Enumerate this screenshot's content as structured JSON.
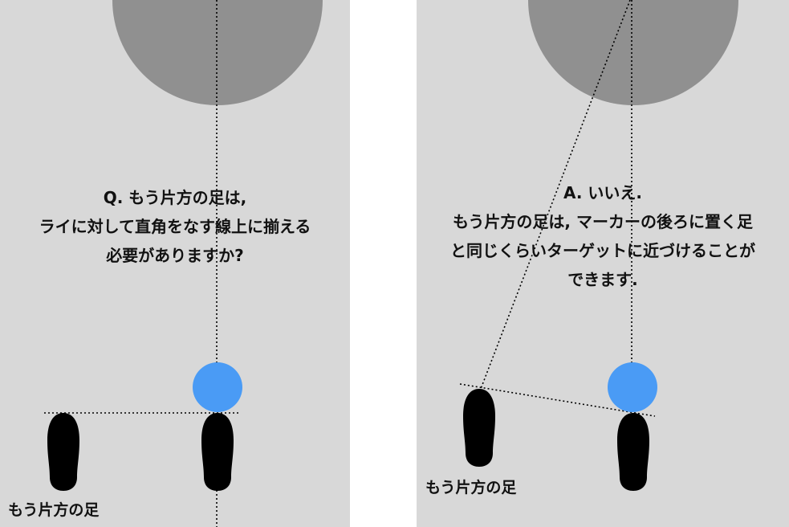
{
  "colors": {
    "background": "#d8d8d8",
    "target_circle": "#909090",
    "marker": "#4a9bf5",
    "foot": "#000000",
    "text": "#111111"
  },
  "left_panel": {
    "question_lines": [
      "Q. もう片方の足は,",
      "ライに対して直角をなす線上に揃える",
      "必要がありますか?"
    ],
    "other_foot_label": "もう片方の足"
  },
  "right_panel": {
    "answer_lines": [
      "A. いいえ.",
      "もう片方の足は, マーカーの後ろに置く足",
      "と同じくらいターゲットに近づけることが",
      "できます."
    ],
    "other_foot_label": "もう片方の足"
  }
}
